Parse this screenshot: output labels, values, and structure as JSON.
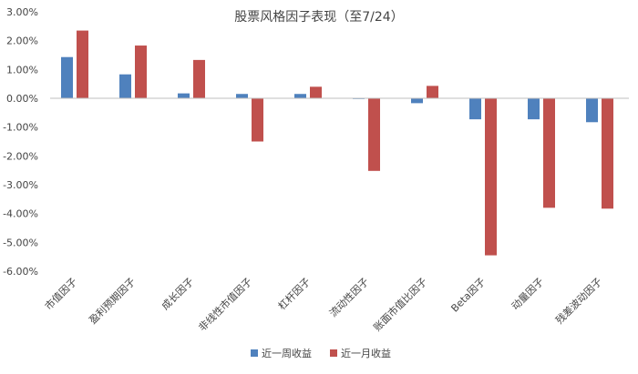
{
  "chart_data": {
    "type": "bar",
    "title": "股票风格因子表现（至7/24）",
    "xlabel": "",
    "ylabel": "",
    "ylim": [
      -6,
      3
    ],
    "yticks": [
      3,
      2,
      1,
      0,
      -1,
      -2,
      -3,
      -4,
      -5,
      -6
    ],
    "ytick_labels": [
      "3.00%",
      "2.00%",
      "1.00%",
      "0.00%",
      "-1.00%",
      "-2.00%",
      "-3.00%",
      "-4.00%",
      "-5.00%",
      "-6.00%"
    ],
    "categories": [
      "市值因子",
      "盈利预期因子",
      "成长因子",
      "非线性市值因子",
      "杠杆因子",
      "流动性因子",
      "账面市值比因子",
      "Beta因子",
      "动量因子",
      "残差波动因子"
    ],
    "series": [
      {
        "name": "近一周收益",
        "color": "#4f81bd",
        "values": [
          1.43,
          0.83,
          0.17,
          0.15,
          0.15,
          0.0,
          -0.17,
          -0.73,
          -0.73,
          -0.83
        ]
      },
      {
        "name": "近一月收益",
        "color": "#c0504d",
        "values": [
          2.35,
          1.83,
          1.33,
          -1.5,
          0.4,
          -2.52,
          0.43,
          -5.45,
          -3.8,
          -3.83
        ]
      }
    ],
    "grid": false,
    "legend_position": "bottom"
  }
}
